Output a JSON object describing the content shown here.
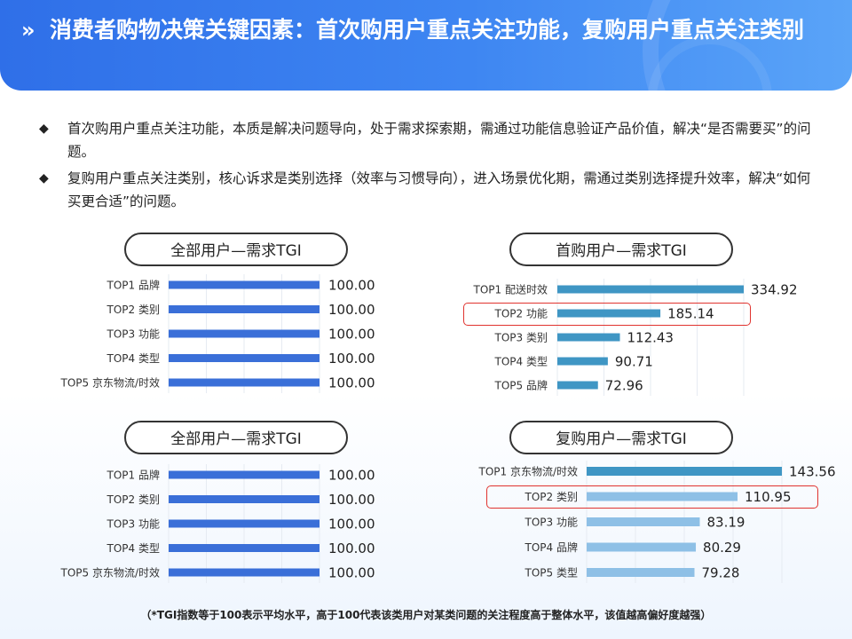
{
  "header": {
    "chevron": "»",
    "title": "消费者购物决策关键因素：首次购用户重点关注功能，复购用户重点关注类别"
  },
  "bullets": [
    {
      "icon": "◆",
      "text": "首次购用户重点关注功能，本质是解决问题导向，处于需求探索期，需通过功能信息验证产品价值，解决“是否需要买”的问题。"
    },
    {
      "icon": "◆",
      "text": "复购用户重点关注类别，核心诉求是类别选择（效率与习惯导向），进入场景优化期，需通过类别选择提升效率，解决“如何买更合适”的问题。"
    }
  ],
  "colors": {
    "dark_bar": "#3a6fd8",
    "teal_bar": "#3f96c4",
    "light_bar": "#8ec0e6",
    "highlight": "#e0332f"
  },
  "chart_data": [
    {
      "type": "bar",
      "title": "全部用户—需求TGI",
      "categories": [
        "TOP1 品牌",
        "TOP2 类别",
        "TOP3 功能",
        "TOP4 类型",
        "TOP5 京东物流/时效"
      ],
      "values": [
        100.0,
        100.0,
        100.0,
        100.0,
        100.0
      ],
      "value_labels": [
        "100.00",
        "100.00",
        "100.00",
        "100.00",
        "100.00"
      ],
      "orientation": "horizontal",
      "xlim": [
        0,
        100
      ],
      "highlight": null
    },
    {
      "type": "bar",
      "title": "首购用户—需求TGI",
      "categories": [
        "TOP1 配送时效",
        "TOP2 功能",
        "TOP3 类别",
        "TOP4 类型",
        "TOP5 品牌"
      ],
      "values": [
        334.92,
        185.14,
        112.43,
        90.71,
        72.96
      ],
      "value_labels": [
        "334.92",
        "185.14",
        "112.43",
        "90.71",
        "72.96"
      ],
      "orientation": "horizontal",
      "xlim": [
        0,
        334.92
      ],
      "highlight": 1
    },
    {
      "type": "bar",
      "title": "全部用户—需求TGI",
      "categories": [
        "TOP1 品牌",
        "TOP2 类别",
        "TOP3 功能",
        "TOP4 类型",
        "TOP5 京东物流/时效"
      ],
      "values": [
        100.0,
        100.0,
        100.0,
        100.0,
        100.0
      ],
      "value_labels": [
        "100.00",
        "100.00",
        "100.00",
        "100.00",
        "100.00"
      ],
      "orientation": "horizontal",
      "xlim": [
        0,
        100
      ],
      "highlight": null
    },
    {
      "type": "bar",
      "title": "复购用户—需求TGI",
      "categories": [
        "TOP1 京东物流/时效",
        "TOP2 类别",
        "TOP3 功能",
        "TOP4 品牌",
        "TOP5 类型"
      ],
      "values": [
        143.56,
        110.95,
        83.19,
        80.29,
        79.28
      ],
      "value_labels": [
        "143.56",
        "110.95",
        "83.19",
        "80.29",
        "79.28"
      ],
      "orientation": "horizontal",
      "xlim": [
        0,
        143.56
      ],
      "highlight": 1
    }
  ],
  "footnote": "（*TGI指数等于100表示平均水平，高于100代表该类用户对某类问题的关注程度高于整体水平，该值越高偏好度越强）"
}
